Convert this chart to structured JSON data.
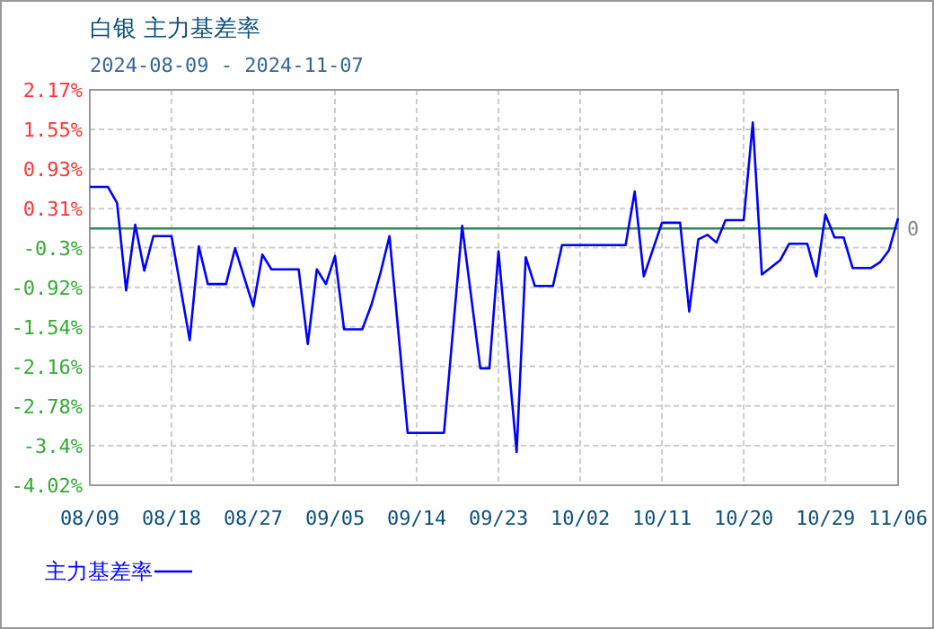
{
  "chart_data": {
    "type": "line",
    "title": "白银  主力基差率",
    "subtitle": "2024-08-09 - 2024-11-07",
    "x": [
      "2024-08-09",
      "2024-08-11",
      "2024-08-12",
      "2024-08-13",
      "2024-08-14",
      "2024-08-15",
      "2024-08-16",
      "2024-08-18",
      "2024-08-20",
      "2024-08-21",
      "2024-08-22",
      "2024-08-24",
      "2024-08-25",
      "2024-08-27",
      "2024-08-28",
      "2024-08-29",
      "2024-09-01",
      "2024-09-02",
      "2024-09-03",
      "2024-09-04",
      "2024-09-05",
      "2024-09-06",
      "2024-09-08",
      "2024-09-09",
      "2024-09-10",
      "2024-09-11",
      "2024-09-13",
      "2024-09-17",
      "2024-09-19",
      "2024-09-21",
      "2024-09-22",
      "2024-09-23",
      "2024-09-25",
      "2024-09-26",
      "2024-09-27",
      "2024-09-29",
      "2024-09-30",
      "2024-10-07",
      "2024-10-08",
      "2024-10-09",
      "2024-10-11",
      "2024-10-13",
      "2024-10-14",
      "2024-10-15",
      "2024-10-16",
      "2024-10-17",
      "2024-10-18",
      "2024-10-20",
      "2024-10-21",
      "2024-10-22",
      "2024-10-24",
      "2024-10-25",
      "2024-10-27",
      "2024-10-28",
      "2024-10-29",
      "2024-10-30",
      "2024-10-31",
      "2024-11-01",
      "2024-11-03",
      "2024-11-04",
      "2024-11-05",
      "2024-11-06"
    ],
    "series": [
      {
        "name": "主力基差率",
        "color": "#0000ff",
        "values": [
          0.65,
          0.65,
          0.4,
          -0.97,
          0.06,
          -0.66,
          -0.12,
          -0.12,
          -1.75,
          -0.28,
          -0.87,
          -0.87,
          -0.31,
          -1.22,
          -0.41,
          -0.64,
          -0.64,
          -1.81,
          -0.64,
          -0.87,
          -0.43,
          -1.58,
          -1.58,
          -1.2,
          -0.7,
          -0.12,
          -3.2,
          -3.2,
          0.04,
          -2.19,
          -2.19,
          -0.36,
          -3.5,
          -0.45,
          -0.9,
          -0.9,
          -0.26,
          -0.26,
          0.58,
          -0.75,
          0.09,
          0.09,
          -1.3,
          -0.17,
          -0.1,
          -0.22,
          0.13,
          0.13,
          1.66,
          -0.72,
          -0.5,
          -0.24,
          -0.24,
          -0.75,
          0.22,
          -0.14,
          -0.14,
          -0.62,
          -0.62,
          -0.53,
          -0.34,
          0.16
        ]
      }
    ],
    "xlim": [
      "2024-08-09",
      "2024-11-06"
    ],
    "xticks": [
      {
        "value": "2024-08-09",
        "label": "08/09"
      },
      {
        "value": "2024-08-18",
        "label": "08/18"
      },
      {
        "value": "2024-08-27",
        "label": "08/27"
      },
      {
        "value": "2024-09-05",
        "label": "09/05"
      },
      {
        "value": "2024-09-14",
        "label": "09/14"
      },
      {
        "value": "2024-09-23",
        "label": "09/23"
      },
      {
        "value": "2024-10-02",
        "label": "10/02"
      },
      {
        "value": "2024-10-11",
        "label": "10/11"
      },
      {
        "value": "2024-10-20",
        "label": "10/20"
      },
      {
        "value": "2024-10-29",
        "label": "10/29"
      },
      {
        "value": "2024-11-06",
        "label": "11/06"
      }
    ],
    "ylim": [
      -4.02,
      2.17
    ],
    "yticks": [
      {
        "value": 2.17,
        "label": "2.17%"
      },
      {
        "value": 1.55,
        "label": "1.55%"
      },
      {
        "value": 0.93,
        "label": "0.93%"
      },
      {
        "value": 0.31,
        "label": "0.31%"
      },
      {
        "value": -0.3,
        "label": "-0.3%"
      },
      {
        "value": -0.92,
        "label": "-0.92%"
      },
      {
        "value": -1.54,
        "label": "-1.54%"
      },
      {
        "value": -2.16,
        "label": "-2.16%"
      },
      {
        "value": -2.78,
        "label": "-2.78%"
      },
      {
        "value": -3.4,
        "label": "-3.4%"
      },
      {
        "value": -4.02,
        "label": "-4.02%"
      }
    ],
    "ref_lines": [
      {
        "axis": "y",
        "value": 0,
        "label": "0",
        "color": "#2e8b57"
      }
    ],
    "grid": true,
    "legend": "bottom",
    "marker": "none",
    "line_style": "solid"
  }
}
